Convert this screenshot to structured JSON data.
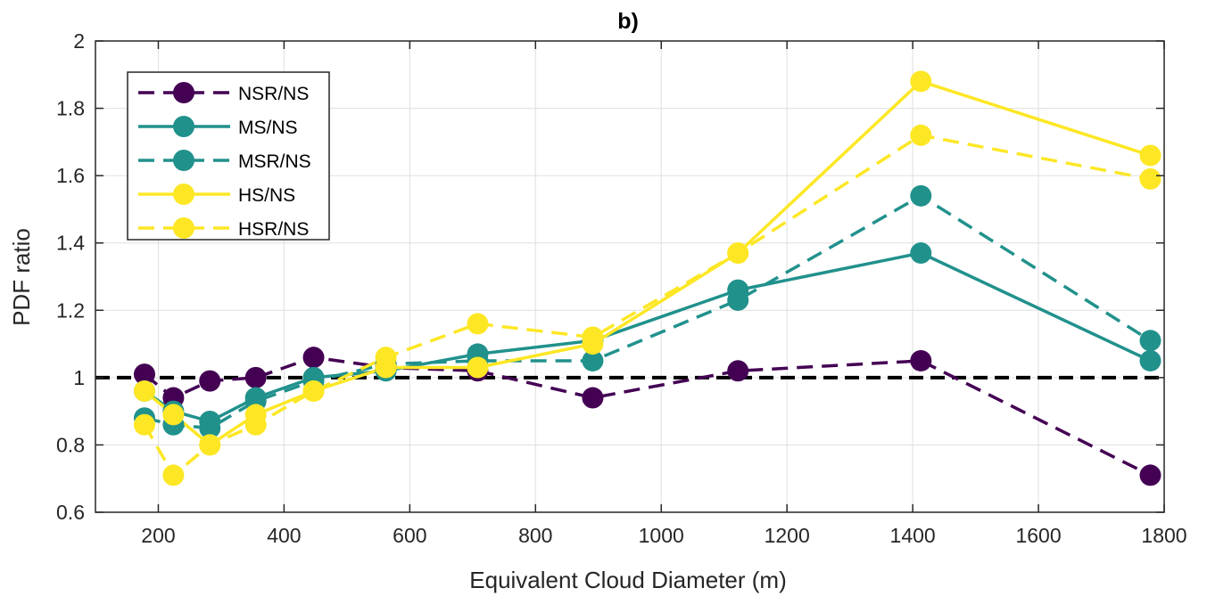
{
  "chart_data": {
    "type": "line",
    "title": "b)",
    "xlabel": "Equivalent Cloud Diameter (m)",
    "ylabel": "PDF ratio",
    "xlim": [
      100,
      1800
    ],
    "ylim": [
      0.6,
      2.0
    ],
    "xticks": [
      200,
      400,
      600,
      800,
      1000,
      1200,
      1400,
      1600,
      1800
    ],
    "yticks": [
      0.6,
      0.8,
      1,
      1.2,
      1.4,
      1.6,
      1.8,
      2
    ],
    "ytick_labels": [
      "0.6",
      "0.8",
      "1",
      "1.2",
      "1.4",
      "1.6",
      "1.8",
      "2"
    ],
    "grid": true,
    "legend_position": "top-left",
    "reference_line": {
      "y": 1.0,
      "style": "dashed",
      "color": "#000000"
    },
    "x": [
      178,
      224,
      282,
      355,
      447,
      562,
      708,
      891,
      1122,
      1413,
      1778
    ],
    "series": [
      {
        "name": "NSR/NS",
        "style": "dashed",
        "color": "#440154",
        "values": [
          1.01,
          0.94,
          0.99,
          1.0,
          1.06,
          1.03,
          1.02,
          0.94,
          1.02,
          1.05,
          0.71
        ]
      },
      {
        "name": "MS/NS",
        "style": "solid",
        "color": "#21918c",
        "values": [
          0.96,
          0.9,
          0.87,
          0.94,
          1.0,
          1.02,
          1.07,
          1.11,
          1.26,
          1.37,
          1.05
        ]
      },
      {
        "name": "MSR/NS",
        "style": "dashed",
        "color": "#21918c",
        "values": [
          0.88,
          0.86,
          0.85,
          0.93,
          0.99,
          1.04,
          1.05,
          1.05,
          1.23,
          1.54,
          1.11
        ]
      },
      {
        "name": "HS/NS",
        "style": "solid",
        "color": "#fde725",
        "values": [
          0.96,
          0.89,
          0.8,
          0.89,
          0.96,
          1.03,
          1.03,
          1.1,
          1.37,
          1.88,
          1.66
        ]
      },
      {
        "name": "HSR/NS",
        "style": "dashed",
        "color": "#fde725",
        "values": [
          0.86,
          0.71,
          0.8,
          0.86,
          0.96,
          1.06,
          1.16,
          1.12,
          1.37,
          1.72,
          1.59
        ]
      }
    ]
  }
}
